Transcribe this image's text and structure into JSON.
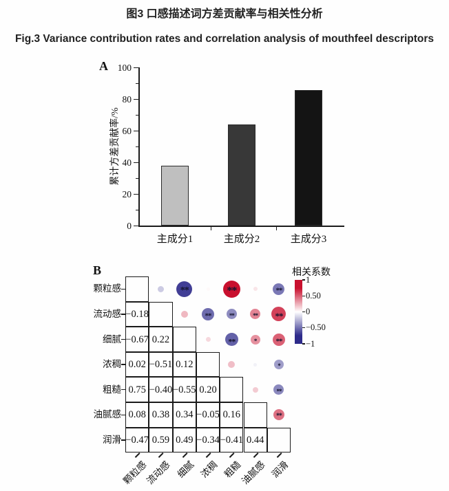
{
  "figure": {
    "title_zh": "图3 口感描述词方差贡献率与相关性分析",
    "title_en": "Fig.3 Variance contribution rates and correlation analysis of mouthfeel descriptors"
  },
  "chart_data": [
    {
      "type": "bar",
      "panel_label": "A",
      "ylabel": "累计方差贡献率/%",
      "ylim": [
        0,
        100
      ],
      "yticks": [
        0,
        20,
        40,
        60,
        80,
        100
      ],
      "grid": false,
      "categories": [
        "主成分1",
        "主成分2",
        "主成分3"
      ],
      "values": [
        38,
        64,
        86
      ],
      "bar_colors": [
        "#bfbfbf",
        "#383838",
        "#141414"
      ]
    },
    {
      "type": "heatmap",
      "subtype": "correlation-circle-matrix",
      "panel_label": "B",
      "variables": [
        "颗粒感",
        "流动感",
        "细腻",
        "浓稠",
        "粗糙",
        "油腻感",
        "润滑"
      ],
      "legend_title": "相关系数",
      "legend_position": "right",
      "colorbar_range": [
        -1,
        1
      ],
      "colorbar_ticks": [
        1,
        0.5,
        0,
        -0.5,
        -1
      ],
      "color_positive": "#c8102e",
      "color_negative": "#2d2a8a",
      "correlations": [
        {
          "pair": [
            "颗粒感",
            "流动感"
          ],
          "r": -0.18,
          "sig": ""
        },
        {
          "pair": [
            "颗粒感",
            "细腻"
          ],
          "r": -0.67,
          "sig": "**"
        },
        {
          "pair": [
            "颗粒感",
            "浓稠"
          ],
          "r": 0.02,
          "sig": ""
        },
        {
          "pair": [
            "颗粒感",
            "粗糙"
          ],
          "r": 0.75,
          "sig": "**"
        },
        {
          "pair": [
            "颗粒感",
            "油腻感"
          ],
          "r": 0.08,
          "sig": ""
        },
        {
          "pair": [
            "颗粒感",
            "润滑"
          ],
          "r": -0.47,
          "sig": "**"
        },
        {
          "pair": [
            "流动感",
            "细腻"
          ],
          "r": 0.22,
          "sig": ""
        },
        {
          "pair": [
            "流动感",
            "浓稠"
          ],
          "r": -0.51,
          "sig": "**"
        },
        {
          "pair": [
            "流动感",
            "粗糙"
          ],
          "r": -0.4,
          "sig": "**"
        },
        {
          "pair": [
            "流动感",
            "油腻感"
          ],
          "r": 0.38,
          "sig": "**"
        },
        {
          "pair": [
            "流动感",
            "润滑"
          ],
          "r": 0.59,
          "sig": "**"
        },
        {
          "pair": [
            "细腻",
            "浓稠"
          ],
          "r": 0.12,
          "sig": ""
        },
        {
          "pair": [
            "细腻",
            "粗糙"
          ],
          "r": -0.55,
          "sig": "**"
        },
        {
          "pair": [
            "细腻",
            "油腻感"
          ],
          "r": 0.34,
          "sig": "*"
        },
        {
          "pair": [
            "细腻",
            "润滑"
          ],
          "r": 0.49,
          "sig": "**"
        },
        {
          "pair": [
            "浓稠",
            "粗糙"
          ],
          "r": 0.2,
          "sig": ""
        },
        {
          "pair": [
            "浓稠",
            "油腻感"
          ],
          "r": -0.05,
          "sig": ""
        },
        {
          "pair": [
            "浓稠",
            "润滑"
          ],
          "r": -0.34,
          "sig": "*"
        },
        {
          "pair": [
            "粗糙",
            "油腻感"
          ],
          "r": 0.16,
          "sig": ""
        },
        {
          "pair": [
            "粗糙",
            "润滑"
          ],
          "r": -0.41,
          "sig": "**"
        },
        {
          "pair": [
            "油腻感",
            "润滑"
          ],
          "r": 0.44,
          "sig": "**"
        }
      ]
    }
  ]
}
